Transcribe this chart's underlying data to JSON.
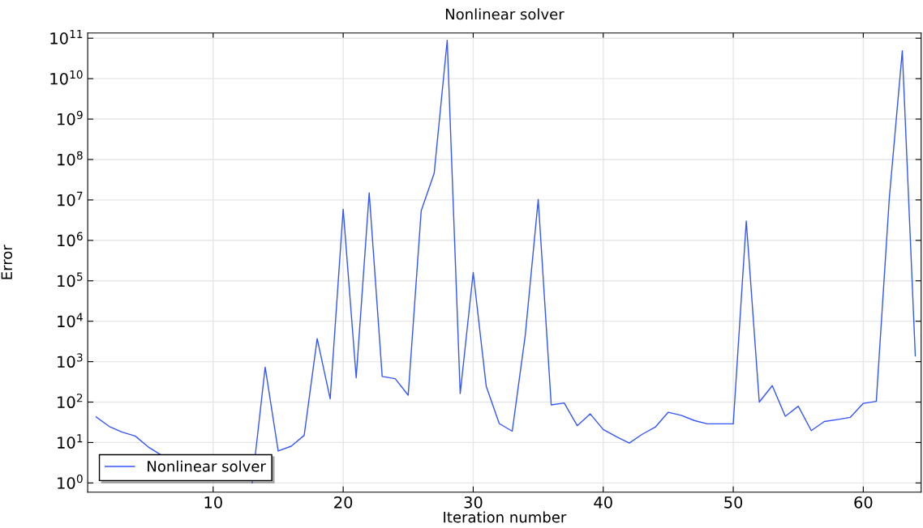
{
  "chart_data": {
    "type": "line",
    "title": "Nonlinear solver",
    "xlabel": "Iteration number",
    "ylabel": "Error",
    "x": [
      1,
      2,
      3,
      4,
      5,
      6,
      7,
      8,
      9,
      10,
      11,
      12,
      13,
      14,
      15,
      16,
      17,
      18,
      19,
      20,
      21,
      22,
      23,
      24,
      25,
      26,
      27,
      28,
      29,
      30,
      31,
      32,
      33,
      34,
      35,
      36,
      37,
      38,
      39,
      40,
      41,
      42,
      43,
      44,
      45,
      46,
      47,
      48,
      49,
      50,
      51,
      52,
      53,
      54,
      55,
      56,
      57,
      58,
      59,
      60,
      61,
      62,
      63,
      64
    ],
    "series": [
      {
        "name": "Nonlinear solver",
        "color": "#3355ff",
        "values": [
          43,
          25,
          18,
          14.5,
          7.8,
          4.9,
          null,
          null,
          null,
          null,
          null,
          null,
          1.0,
          730,
          6.2,
          8.1,
          15,
          3700,
          120,
          5900000.0,
          400,
          15000000.0,
          430,
          380,
          148,
          5400000.0,
          46000000.0,
          89000000000.0,
          162,
          160000.0,
          245,
          29.5,
          19,
          4400,
          10300000.0,
          85,
          95,
          26,
          51,
          21,
          14,
          9.7,
          16,
          24,
          56,
          47,
          35,
          29,
          29,
          29,
          3000000.0,
          100,
          255,
          44.5,
          79,
          19.7,
          33,
          37,
          42,
          93,
          104,
          11000000.0,
          49000000000.0,
          1380
        ]
      }
    ],
    "log": "y",
    "xlim": [
      0.35,
      64.45
    ],
    "ylim": [
      0.59,
      135000000000.0
    ],
    "xticks": [
      10,
      20,
      30,
      40,
      50,
      60
    ],
    "yticks": [
      {
        "value": 1,
        "label": "10$^{0}$"
      },
      {
        "value": 10,
        "label": "10$^{1}$"
      },
      {
        "value": 100,
        "label": "10$^{2}$"
      },
      {
        "value": 1000,
        "label": "10$^{3}$"
      },
      {
        "value": 10000.0,
        "label": "10$^{4}$"
      },
      {
        "value": 100000.0,
        "label": "10$^{5}$"
      },
      {
        "value": 1000000.0,
        "label": "10$^{6}$"
      },
      {
        "value": 10000000.0,
        "label": "10$^{7}$"
      },
      {
        "value": 100000000.0,
        "label": "10$^{8}$"
      },
      {
        "value": 1000000000.0,
        "label": "10$^{9}$"
      },
      {
        "value": 10000000000.0,
        "label": "10$^{10}$"
      },
      {
        "value": 100000000000.0,
        "label": "10$^{11}$"
      }
    ],
    "grid": true,
    "legend": "bottom left",
    "marker": "none",
    "line_style": "solid"
  }
}
